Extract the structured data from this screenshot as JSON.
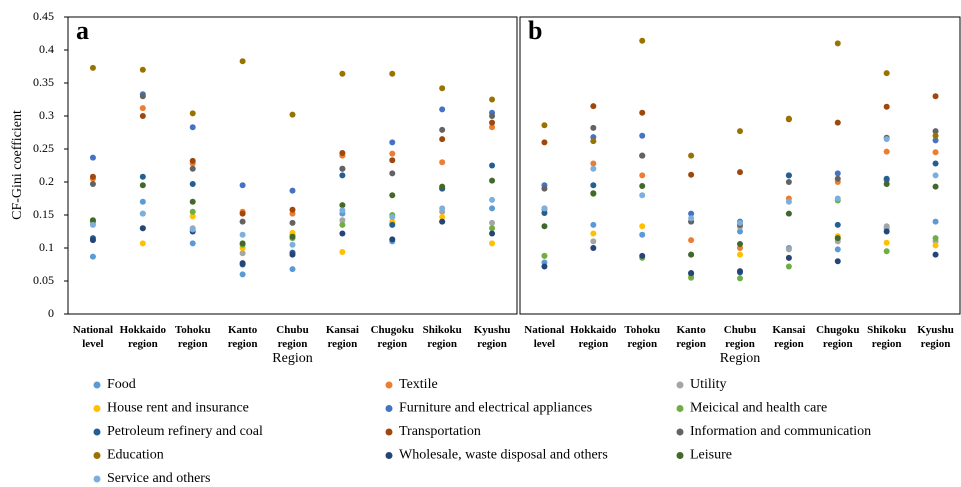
{
  "chart_data": [
    {
      "type": "scatter",
      "panel_label": "a",
      "y_label": "CF-Gini coefficient",
      "x_label": "Region",
      "ylim": [
        0,
        0.45
      ],
      "yticks": [
        0,
        0.05,
        0.1,
        0.15,
        0.2,
        0.25,
        0.3,
        0.35,
        0.4,
        0.45
      ],
      "categories": [
        "National level",
        "Hokkaido region",
        "Tohoku region",
        "Kanto region",
        "Chubu region",
        "Kansai region",
        "Chugoku region",
        "Shikoku region",
        "Kyushu region"
      ],
      "series": [
        {
          "name": "Food",
          "color": "#5b9bd5",
          "values": [
            0.087,
            0.17,
            0.107,
            0.06,
            0.068,
            0.152,
            0.11,
            0.14,
            0.16
          ]
        },
        {
          "name": "Textile",
          "color": "#ed7d31",
          "values": [
            0.205,
            0.312,
            0.228,
            0.155,
            0.152,
            0.24,
            0.243,
            0.23,
            0.283
          ]
        },
        {
          "name": "Utility",
          "color": "#a5a5a5",
          "values": [
            0.14,
            0.152,
            0.13,
            0.092,
            0.12,
            0.142,
            0.137,
            0.155,
            0.138
          ]
        },
        {
          "name": "House rent and insurance",
          "color": "#ffc000",
          "values": [
            0.138,
            0.107,
            0.148,
            0.1,
            0.123,
            0.094,
            0.14,
            0.147,
            0.107
          ]
        },
        {
          "name": "Furniture and electrical appliances",
          "color": "#4472c4",
          "values": [
            0.237,
            0.333,
            0.283,
            0.195,
            0.187,
            0.22,
            0.26,
            0.31,
            0.305
          ]
        },
        {
          "name": "Meicical and health care",
          "color": "#70ad47",
          "values": [
            0.14,
            0.13,
            0.155,
            0.105,
            0.115,
            0.135,
            0.15,
            0.19,
            0.13
          ]
        },
        {
          "name": "Petroleum refinery and coal",
          "color": "#255e91",
          "values": [
            0.115,
            0.208,
            0.197,
            0.075,
            0.093,
            0.21,
            0.135,
            0.19,
            0.225
          ]
        },
        {
          "name": "Transportation",
          "color": "#9e480e",
          "values": [
            0.208,
            0.3,
            0.232,
            0.152,
            0.158,
            0.244,
            0.233,
            0.265,
            0.29
          ]
        },
        {
          "name": "Information and communication",
          "color": "#636363",
          "values": [
            0.197,
            0.33,
            0.22,
            0.14,
            0.138,
            0.22,
            0.213,
            0.279,
            0.3
          ]
        },
        {
          "name": "Education",
          "color": "#997300",
          "values": [
            0.373,
            0.37,
            0.304,
            0.383,
            0.302,
            0.364,
            0.364,
            0.342,
            0.325
          ]
        },
        {
          "name": "Wholesale, waste disposal and others",
          "color": "#264478",
          "values": [
            0.112,
            0.13,
            0.125,
            0.077,
            0.09,
            0.122,
            0.113,
            0.14,
            0.122
          ]
        },
        {
          "name": "Leisure",
          "color": "#43682b",
          "values": [
            0.142,
            0.195,
            0.17,
            0.107,
            0.117,
            0.165,
            0.18,
            0.193,
            0.202
          ]
        },
        {
          "name": "Service and others",
          "color": "#7cafdd",
          "values": [
            0.135,
            0.152,
            0.128,
            0.12,
            0.105,
            0.157,
            0.147,
            0.16,
            0.173
          ]
        }
      ]
    },
    {
      "type": "scatter",
      "panel_label": "b",
      "x_label": "Region",
      "ylim": [
        0,
        0.45
      ],
      "categories": [
        "National level",
        "Hokkaido region",
        "Tohoku region",
        "Kanto region",
        "Chubu region",
        "Kansai region",
        "Chugoku region",
        "Shikoku region",
        "Kyushu region"
      ],
      "series": [
        {
          "color": "#5b9bd5",
          "values": [
            0.078,
            0.135,
            0.12,
            0.09,
            0.125,
            0.1,
            0.098,
            0.13,
            0.14
          ]
        },
        {
          "color": "#ed7d31",
          "values": [
            0.158,
            0.228,
            0.21,
            0.112,
            0.1,
            0.175,
            0.2,
            0.246,
            0.245
          ]
        },
        {
          "color": "#a5a5a5",
          "values": [
            0.16,
            0.11,
            0.24,
            0.14,
            0.132,
            0.098,
            0.11,
            0.133,
            0.11
          ]
        },
        {
          "color": "#ffc000",
          "values": [
            0.088,
            0.122,
            0.133,
            0.058,
            0.09,
            0.085,
            0.118,
            0.108,
            0.104
          ]
        },
        {
          "color": "#4472c4",
          "values": [
            0.195,
            0.268,
            0.27,
            0.152,
            0.14,
            0.21,
            0.213,
            0.203,
            0.263
          ]
        },
        {
          "color": "#70ad47",
          "values": [
            0.088,
            0.182,
            0.085,
            0.055,
            0.054,
            0.072,
            0.172,
            0.095,
            0.115
          ]
        },
        {
          "color": "#255e91",
          "values": [
            0.153,
            0.195,
            0.24,
            0.062,
            0.063,
            0.21,
            0.135,
            0.205,
            0.228
          ]
        },
        {
          "color": "#9e480e",
          "values": [
            0.26,
            0.315,
            0.305,
            0.211,
            0.215,
            0.295,
            0.29,
            0.314,
            0.33
          ]
        },
        {
          "color": "#636363",
          "values": [
            0.19,
            0.282,
            0.24,
            0.14,
            0.135,
            0.2,
            0.205,
            0.267,
            0.277
          ]
        },
        {
          "color": "#997300",
          "values": [
            0.286,
            0.262,
            0.414,
            0.24,
            0.277,
            0.296,
            0.41,
            0.365,
            0.27
          ]
        },
        {
          "color": "#264478",
          "values": [
            0.072,
            0.1,
            0.088,
            0.062,
            0.065,
            0.085,
            0.08,
            0.125,
            0.09
          ]
        },
        {
          "color": "#43682b",
          "values": [
            0.133,
            0.183,
            0.194,
            0.09,
            0.106,
            0.152,
            0.115,
            0.197,
            0.193
          ]
        },
        {
          "color": "#7cafdd",
          "values": [
            0.16,
            0.22,
            0.18,
            0.145,
            0.138,
            0.17,
            0.175,
            0.265,
            0.21
          ]
        }
      ]
    }
  ]
}
